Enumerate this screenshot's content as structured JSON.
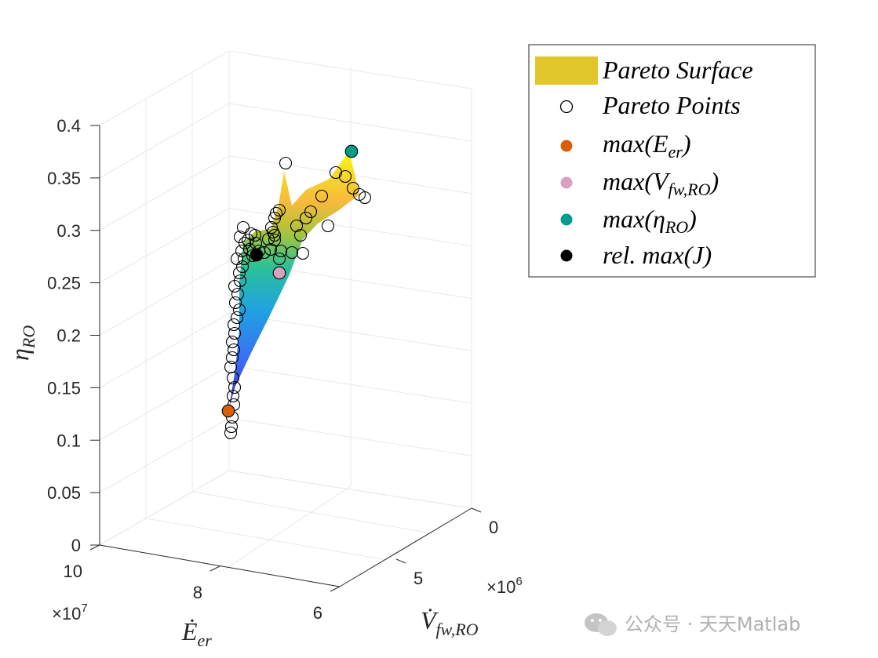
{
  "chart_data": {
    "type": "scatter3d",
    "title": "",
    "axes": {
      "x": {
        "label": "Ė_er",
        "label_main": "Ė",
        "label_sub": "er",
        "ticks": [
          "6",
          "8",
          "10"
        ],
        "tick_values": [
          60000000.0,
          80000000.0,
          100000000.0
        ],
        "multiplier": "×10",
        "multiplier_exp": "7"
      },
      "y": {
        "label": "V̇_fw,RO",
        "label_main": "V̇",
        "label_sub": "fw,RO",
        "ticks": [
          "0",
          "5"
        ],
        "tick_values": [
          0,
          5000000.0
        ],
        "multiplier": "×10",
        "multiplier_exp": "6"
      },
      "z": {
        "label": "η_RO",
        "label_main": "η",
        "label_sub": "RO",
        "ticks": [
          "0",
          "0.05",
          "0.1",
          "0.15",
          "0.2",
          "0.25",
          "0.3",
          "0.35",
          "0.4"
        ],
        "tick_values": [
          0,
          0.05,
          0.1,
          0.15,
          0.2,
          0.25,
          0.3,
          0.35,
          0.4
        ],
        "zlim": [
          0,
          0.4
        ]
      }
    },
    "grid": true,
    "legend": {
      "placement": "top-right",
      "entries": [
        {
          "label": "Pareto Surface",
          "type": "patch",
          "color": "#e1c72b"
        },
        {
          "label": "Pareto Points",
          "type": "marker-open",
          "color": "#000000"
        },
        {
          "label": "max(Ė_er)",
          "main": "max(",
          "dot": "E",
          "sub": "er",
          "tail": ")",
          "type": "marker-filled",
          "color": "#d95f02"
        },
        {
          "label": "max(V̇_fw,RO)",
          "main": "max(",
          "dot": "V",
          "sub": "fw,RO",
          "tail": ")",
          "type": "marker-filled",
          "color": "#d9a0c2"
        },
        {
          "label": "max(η_RO)",
          "main": "max(η",
          "sub": "RO",
          "tail": ")",
          "type": "marker-filled",
          "color": "#009e8a"
        },
        {
          "label": "rel. max(J)",
          "type": "marker-filled",
          "color": "#000000"
        }
      ]
    },
    "surface": {
      "name": "Pareto Surface",
      "colormap": "parula",
      "z_range": [
        0.12,
        0.37
      ]
    },
    "highlight_points": [
      {
        "name": "max(Ė_er)",
        "color": "#d95f02",
        "eta_RO": 0.125
      },
      {
        "name": "max(V̇_fw,RO)",
        "color": "#d9a0c2",
        "eta_RO": 0.258
      },
      {
        "name": "max(η_RO)",
        "color": "#009e8a",
        "eta_RO": 0.374
      },
      {
        "name": "rel. max(J)",
        "color": "#000000",
        "eta_RO": 0.276
      }
    ]
  },
  "watermark": {
    "text": "公众号 · 天天Matlab",
    "icon": "wechat-icon"
  }
}
